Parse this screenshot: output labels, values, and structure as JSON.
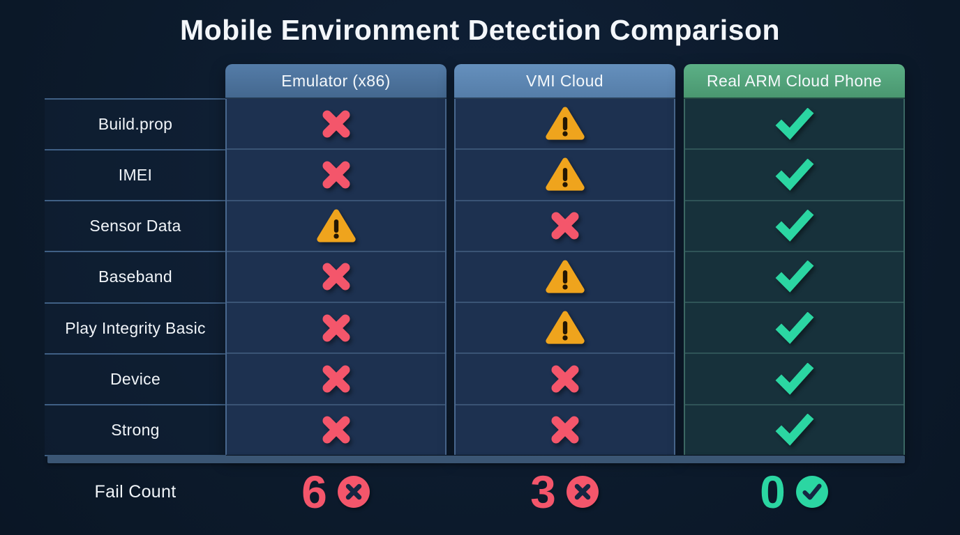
{
  "title": "Mobile Environment Detection Comparison",
  "columns": [
    {
      "id": "emulator",
      "label": "Emulator (x86)"
    },
    {
      "id": "vmi",
      "label": "VMI Cloud"
    },
    {
      "id": "arm",
      "label": "Real ARM Cloud Phone"
    }
  ],
  "rows": [
    {
      "label": "Build.prop",
      "states": [
        "fail",
        "warn",
        "pass"
      ]
    },
    {
      "label": "IMEI",
      "states": [
        "fail",
        "warn",
        "pass"
      ]
    },
    {
      "label": "Sensor Data",
      "states": [
        "warn",
        "fail",
        "pass"
      ]
    },
    {
      "label": "Baseband",
      "states": [
        "fail",
        "warn",
        "pass"
      ]
    },
    {
      "label": "Play Integrity Basic",
      "states": [
        "fail",
        "warn",
        "pass"
      ]
    },
    {
      "label": "Device",
      "states": [
        "fail",
        "fail",
        "pass"
      ]
    },
    {
      "label": "Strong",
      "states": [
        "fail",
        "fail",
        "pass"
      ]
    }
  ],
  "footer": {
    "label": "Fail Count",
    "counts": [
      {
        "value": "6",
        "tone": "fail"
      },
      {
        "value": "3",
        "tone": "fail"
      },
      {
        "value": "0",
        "tone": "pass"
      }
    ]
  },
  "icons": {
    "fail": "x-mark-icon",
    "warn": "warning-triangle-icon",
    "pass": "check-mark-icon",
    "fail_badge": "circle-x-icon",
    "pass_badge": "circle-check-icon"
  },
  "colors": {
    "background": "#0c1a2b",
    "fail": "#f4566b",
    "warn": "#efa41d",
    "pass": "#2bd6a2",
    "header_emulator": "#4a7099",
    "header_vmi": "#5d86b2",
    "header_arm": "#55a57d",
    "column_body_blue": "#1d3150",
    "column_body_teal": "#17313b",
    "bottom_bar": "#3b5674"
  },
  "chart_data": {
    "type": "table",
    "title": "Mobile Environment Detection Comparison",
    "columns": [
      "Emulator (x86)",
      "VMI Cloud",
      "Real ARM Cloud Phone"
    ],
    "row_labels": [
      "Build.prop",
      "IMEI",
      "Sensor Data",
      "Baseband",
      "Play Integrity Basic",
      "Device",
      "Strong"
    ],
    "cell_states": [
      [
        "fail",
        "warn",
        "pass"
      ],
      [
        "fail",
        "warn",
        "pass"
      ],
      [
        "warn",
        "fail",
        "pass"
      ],
      [
        "fail",
        "warn",
        "pass"
      ],
      [
        "fail",
        "warn",
        "pass"
      ],
      [
        "fail",
        "fail",
        "pass"
      ],
      [
        "fail",
        "fail",
        "pass"
      ]
    ],
    "fail_counts": [
      6,
      3,
      0
    ]
  }
}
